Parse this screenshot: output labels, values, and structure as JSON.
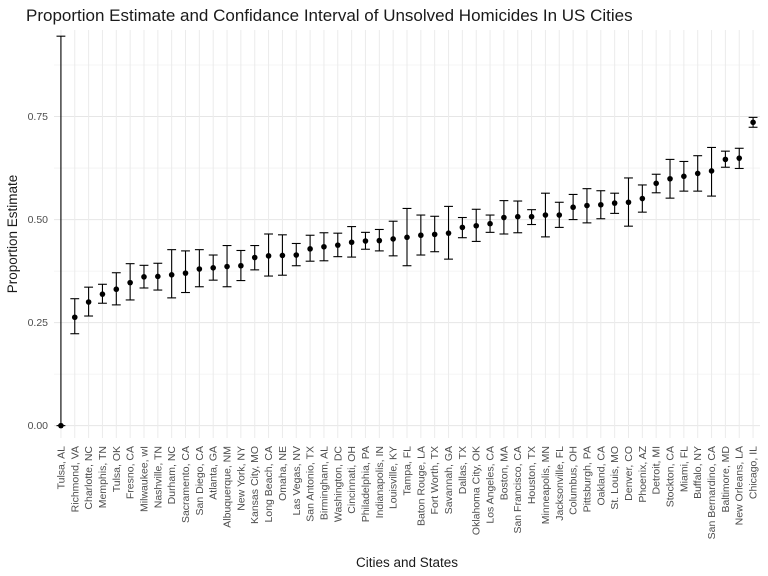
{
  "chart_data": {
    "type": "scatter",
    "title": "Proportion Estimate and Confidance Interval of Unsolved Homicides In US Cities",
    "xlabel": "Cities and States",
    "ylabel": "Proportion Estimate",
    "ylim": [
      -0.03,
      0.96
    ],
    "yticks": [
      0.0,
      0.25,
      0.5,
      0.75
    ],
    "ytick_labels": [
      "0.00",
      "0.25",
      "0.50",
      "0.75"
    ],
    "grid": true,
    "error_bars": true,
    "point_color": "#000000",
    "categories": [
      "Tulsa, AL",
      "Richmond, VA",
      "Charlotte, NC",
      "Memphis, TN",
      "Tulsa, OK",
      "Fresno, CA",
      "Milwaukee, wI",
      "Nashville, TN",
      "Durham, NC",
      "Sacramento, CA",
      "San Diego, CA",
      "Atlanta, GA",
      "Albuquerque, NM",
      "New York, NY",
      "Kansas City, MO",
      "Long Beach, CA",
      "Omaha, NE",
      "Las Vegas, NV",
      "San Antonio, TX",
      "Birmingham, AL",
      "Washington, DC",
      "Cincinnati, OH",
      "Philadelphia, PA",
      "Indianapolis, IN",
      "Louisville, KY",
      "Tampa, FL",
      "Baton Rouge, LA",
      "Fort Worth, TX",
      "Savannah, GA",
      "Dallas, TX",
      "Oklahoma City, OK",
      "Los Angeles, CA",
      "Boston, MA",
      "San Francisco, CA",
      "Houston, TX",
      "Minneapolis, MN",
      "Jacksonville, FL",
      "Columbus, OH",
      "Pittsburgh, PA",
      "Oakland, CA",
      "St. Louis, MO",
      "Denver, CO",
      "Phoenix, AZ",
      "Detroit, MI",
      "Stockton, CA",
      "Miami, FL",
      "Buffalo, NY",
      "San Bernardino, CA",
      "Baltimore, MD",
      "New Orleans, LA",
      "Chicago, IL"
    ],
    "estimate": [
      0.0,
      0.263,
      0.3,
      0.319,
      0.331,
      0.347,
      0.361,
      0.362,
      0.366,
      0.37,
      0.38,
      0.383,
      0.386,
      0.388,
      0.408,
      0.412,
      0.413,
      0.414,
      0.429,
      0.434,
      0.438,
      0.445,
      0.448,
      0.449,
      0.453,
      0.457,
      0.462,
      0.464,
      0.467,
      0.481,
      0.485,
      0.49,
      0.505,
      0.507,
      0.507,
      0.511,
      0.511,
      0.53,
      0.534,
      0.536,
      0.54,
      0.542,
      0.551,
      0.588,
      0.599,
      0.605,
      0.612,
      0.618,
      0.646,
      0.649,
      0.736
    ],
    "lower": [
      0.0,
      0.223,
      0.266,
      0.297,
      0.293,
      0.305,
      0.334,
      0.329,
      0.31,
      0.323,
      0.337,
      0.353,
      0.337,
      0.352,
      0.378,
      0.363,
      0.365,
      0.388,
      0.399,
      0.4,
      0.41,
      0.409,
      0.428,
      0.424,
      0.412,
      0.388,
      0.414,
      0.422,
      0.404,
      0.456,
      0.447,
      0.469,
      0.465,
      0.468,
      0.488,
      0.458,
      0.481,
      0.5,
      0.492,
      0.502,
      0.515,
      0.484,
      0.518,
      0.565,
      0.552,
      0.569,
      0.569,
      0.557,
      0.627,
      0.624,
      0.724
    ],
    "upper": [
      0.945,
      0.308,
      0.336,
      0.343,
      0.371,
      0.393,
      0.389,
      0.394,
      0.427,
      0.424,
      0.427,
      0.414,
      0.437,
      0.425,
      0.437,
      0.465,
      0.463,
      0.442,
      0.462,
      0.468,
      0.467,
      0.483,
      0.469,
      0.476,
      0.496,
      0.527,
      0.511,
      0.508,
      0.532,
      0.505,
      0.525,
      0.511,
      0.546,
      0.545,
      0.524,
      0.564,
      0.542,
      0.561,
      0.575,
      0.57,
      0.564,
      0.601,
      0.584,
      0.61,
      0.646,
      0.641,
      0.655,
      0.675,
      0.666,
      0.673,
      0.748
    ]
  }
}
